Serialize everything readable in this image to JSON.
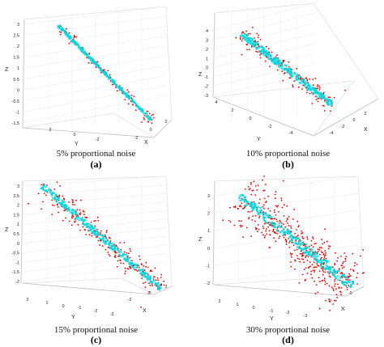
{
  "chart_data": [
    {
      "type": "scatter",
      "panel_label": "(a)",
      "caption": "5% proportional noise",
      "noise_fraction": 0.05,
      "view": "steep",
      "zlabel": "Z",
      "xlabel": "X",
      "ylabel": "Y",
      "z_ticks": [
        "3",
        "2.5",
        "2",
        "1.5",
        "1",
        "0.5",
        "0",
        "-0.5",
        "-1",
        "-1.5"
      ],
      "x_ticks": [
        "-2",
        "0",
        "2"
      ],
      "y_ticks": [
        "2",
        "0",
        "-2"
      ],
      "zlim": [
        -1.5,
        3
      ],
      "series": [
        {
          "color": "#00d8e0",
          "marker": "x",
          "values": "clean line through the data cloud"
        },
        {
          "color": "#e00000",
          "marker": "dot",
          "values": "noisy points"
        }
      ]
    },
    {
      "type": "scatter",
      "panel_label": "(b)",
      "caption": "10% proportional noise",
      "noise_fraction": 0.1,
      "view": "oblique",
      "zlabel": "Z",
      "xlabel": "X",
      "ylabel": "Y",
      "z_ticks": [
        "4",
        "3",
        "2",
        "1",
        "0",
        "-1",
        "-2",
        "-3"
      ],
      "x_ticks": [
        "-4",
        "-2",
        "0",
        "2"
      ],
      "y_ticks": [
        "4",
        "2",
        "0",
        "-2",
        "-4"
      ],
      "zlim": [
        -3,
        4
      ],
      "series": [
        {
          "color": "#00d8e0",
          "marker": "x"
        },
        {
          "color": "#e00000",
          "marker": "dot"
        }
      ]
    },
    {
      "type": "scatter",
      "panel_label": "(c)",
      "caption": "15% proportional noise",
      "noise_fraction": 0.15,
      "view": "steep",
      "zlabel": "Z",
      "xlabel": "X",
      "ylabel": "Y",
      "z_ticks": [
        "3",
        "2.5",
        "2",
        "1.5",
        "1",
        "0.5",
        "0",
        "-0.5",
        "-1",
        "-1.5",
        "-2"
      ],
      "x_ticks": [
        "-2",
        "0",
        "2"
      ],
      "y_ticks": [
        "2",
        "1",
        "0",
        "-1",
        "-2",
        "-3"
      ],
      "zlim": [
        -2,
        3
      ],
      "series": [
        {
          "color": "#00d8e0",
          "marker": "x"
        },
        {
          "color": "#e00000",
          "marker": "dot"
        }
      ]
    },
    {
      "type": "scatter",
      "panel_label": "(d)",
      "caption": "30% proportional noise",
      "noise_fraction": 0.3,
      "view": "steep",
      "zlabel": "Z",
      "xlabel": "X",
      "ylabel": "Y",
      "z_ticks": [
        "3",
        "2",
        "1",
        "0",
        "-1",
        "-2"
      ],
      "x_ticks": [
        "-2",
        "0"
      ],
      "y_ticks": [
        "2",
        "1",
        "0",
        "-1",
        "-2",
        "-3"
      ],
      "zlim": [
        -2,
        3
      ],
      "series": [
        {
          "color": "#00d8e0",
          "marker": "x"
        },
        {
          "color": "#e00000",
          "marker": "dot"
        }
      ]
    }
  ]
}
